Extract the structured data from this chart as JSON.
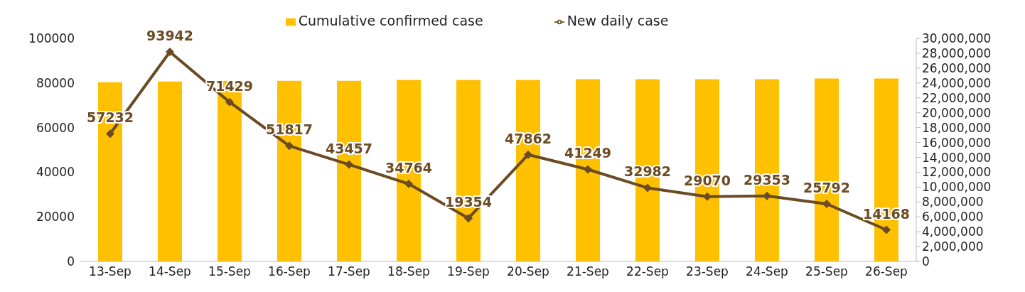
{
  "chart_data": {
    "type": "bar",
    "categories": [
      "13-Sep",
      "14-Sep",
      "15-Sep",
      "16-Sep",
      "17-Sep",
      "18-Sep",
      "19-Sep",
      "20-Sep",
      "21-Sep",
      "22-Sep",
      "23-Sep",
      "24-Sep",
      "25-Sep",
      "26-Sep"
    ],
    "series": [
      {
        "name": "Cumulative confirmed case",
        "axis": "y2",
        "color": "#ffc000",
        "values": [
          24100000,
          24200000,
          24300000,
          24300000,
          24300000,
          24400000,
          24400000,
          24400000,
          24500000,
          24500000,
          24500000,
          24500000,
          24600000,
          24600000
        ]
      },
      {
        "name": "New daily case",
        "type": "line",
        "color": "#6b4b23",
        "marker": "diamond",
        "data_labels": true,
        "values": [
          57232,
          93942,
          71429,
          51817,
          43457,
          34764,
          19354,
          47862,
          41249,
          32982,
          29070,
          29353,
          25792,
          14168
        ]
      }
    ],
    "ylim": [
      0,
      100000
    ],
    "yticks": [
      0,
      20000,
      40000,
      60000,
      80000,
      100000
    ],
    "y2lim": [
      0,
      30000000
    ],
    "y2ticks": [
      0,
      {
        "value": 2000000,
        "label": "2,000,000"
      },
      {
        "value": 4000000,
        "label": "4,000,000"
      },
      {
        "value": 6000000,
        "label": "6,000,000"
      },
      {
        "value": 8000000,
        "label": "8,000,000"
      },
      {
        "value": 10000000,
        "label": "10,000,000"
      },
      {
        "value": 12000000,
        "label": "12,000,000"
      },
      {
        "value": 14000000,
        "label": "14,000,000"
      },
      {
        "value": 16000000,
        "label": "16,000,000"
      },
      {
        "value": 18000000,
        "label": "18,000,000"
      },
      {
        "value": 20000000,
        "label": "20,000,000"
      },
      {
        "value": 22000000,
        "label": "22,000,000"
      },
      {
        "value": 24000000,
        "label": "24,000,000"
      },
      {
        "value": 26000000,
        "label": "26,000,000"
      },
      {
        "value": 28000000,
        "label": "28,000,000"
      },
      {
        "value": 30000000,
        "label": "30,000,000"
      }
    ],
    "grid": false,
    "legend": "top"
  }
}
